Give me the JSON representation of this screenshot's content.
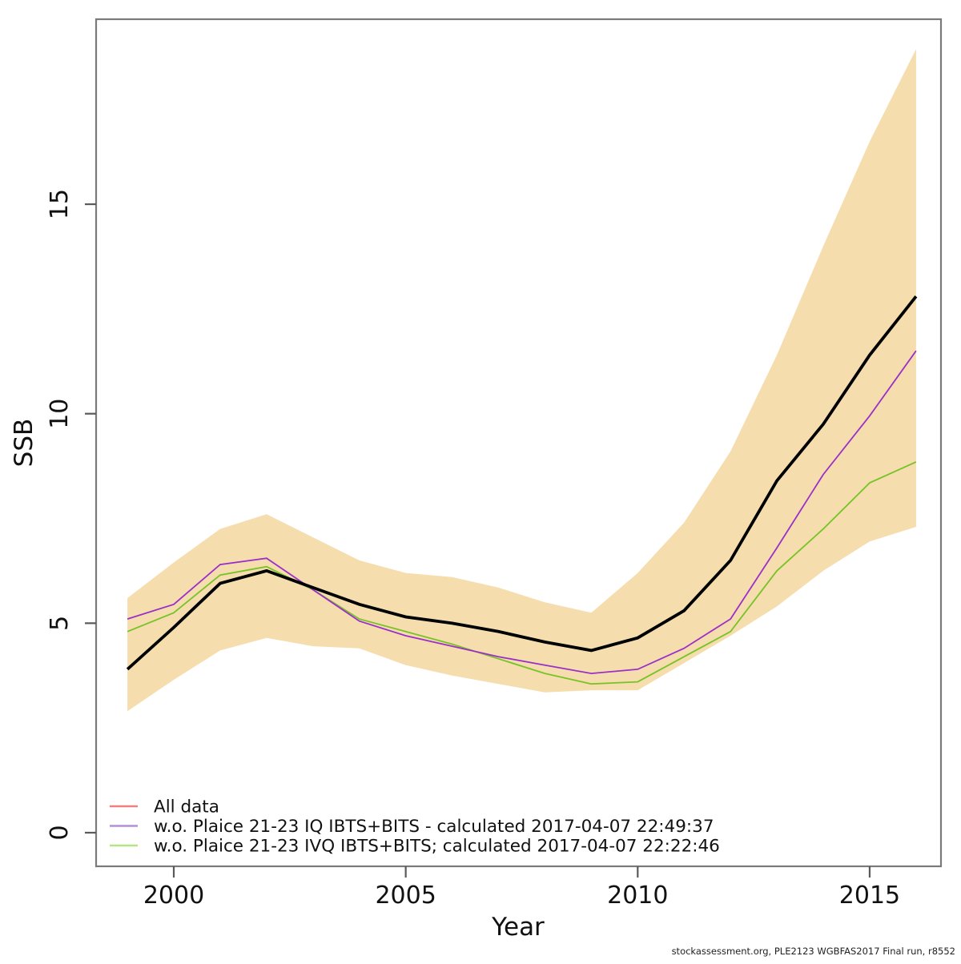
{
  "chart_data": {
    "type": "line",
    "title": "",
    "xlabel": "Year",
    "ylabel": "SSB",
    "xlim": [
      1998.3,
      2016.5
    ],
    "ylim": [
      -0.8,
      19.4
    ],
    "grid": false,
    "legend_position": "bottom-left",
    "x_ticks": [
      2000,
      2005,
      2010,
      2015
    ],
    "y_ticks": [
      0,
      5,
      10,
      15
    ],
    "years": [
      1999,
      2000,
      2001,
      2002,
      2003,
      2004,
      2005,
      2006,
      2007,
      2008,
      2009,
      2010,
      2011,
      2012,
      2013,
      2014,
      2015,
      2016
    ],
    "band": {
      "name": "confidence-band",
      "color": "#F5DDAE",
      "low": [
        2.9,
        3.65,
        4.35,
        4.65,
        4.45,
        4.4,
        4.0,
        3.75,
        3.55,
        3.35,
        3.4,
        3.4,
        4.05,
        4.7,
        5.4,
        6.25,
        6.95,
        7.3
      ],
      "high": [
        5.6,
        6.45,
        7.25,
        7.6,
        7.05,
        6.5,
        6.2,
        6.1,
        5.85,
        5.5,
        5.25,
        6.2,
        7.4,
        9.1,
        11.4,
        14.0,
        16.5,
        18.7
      ]
    },
    "series": [
      {
        "name": "All data",
        "line_color": "#000000",
        "legend_color": "#F08080",
        "line_width": 3.8,
        "values": [
          3.9,
          4.9,
          5.95,
          6.25,
          5.85,
          5.45,
          5.15,
          5.0,
          4.8,
          4.55,
          4.35,
          4.65,
          5.3,
          6.5,
          8.4,
          9.75,
          11.4,
          12.8
        ]
      },
      {
        "name": "w.o. Plaice 21-23 IQ IBTS+BITS - calculated 2017-04-07 22:49:37",
        "line_color": "#9B30C8",
        "legend_color": "#B48FD8",
        "line_width": 1.8,
        "values": [
          5.1,
          5.45,
          6.4,
          6.55,
          5.8,
          5.05,
          4.7,
          4.45,
          4.2,
          4.0,
          3.8,
          3.9,
          4.4,
          5.1,
          6.8,
          8.55,
          9.95,
          11.5
        ]
      },
      {
        "name": "w.o. Plaice 21-23 IVQ IBTS+BITS; calculated 2017-04-07 22:22:46",
        "line_color": "#77C327",
        "legend_color": "#B7E388",
        "line_width": 1.8,
        "values": [
          4.8,
          5.25,
          6.15,
          6.35,
          5.8,
          5.1,
          4.8,
          4.5,
          4.15,
          3.8,
          3.55,
          3.6,
          4.2,
          4.8,
          6.25,
          7.25,
          8.35,
          8.85
        ]
      }
    ],
    "footer": "stockassessment.org, PLE2123 WGBFAS2017 Final run, r8552"
  }
}
